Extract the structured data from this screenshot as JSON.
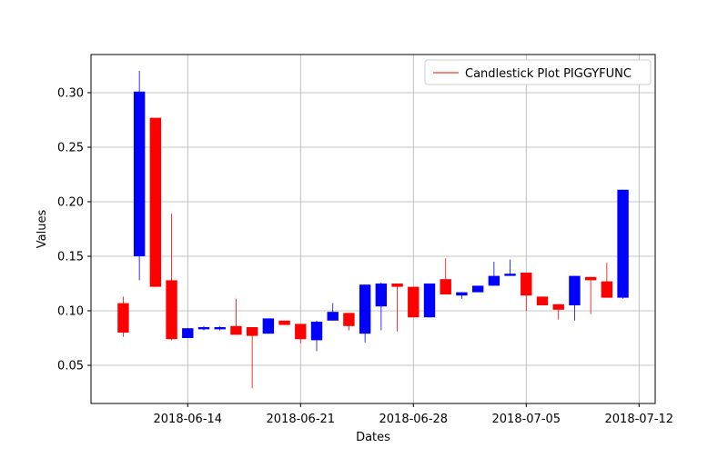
{
  "chart_data": {
    "type": "candlestick",
    "title": "",
    "xlabel": "Dates",
    "ylabel": "Values",
    "legend": {
      "label": "Candlestick Plot PIGGYFUNC",
      "position": "top-right",
      "line_color": "#ff0000"
    },
    "grid": true,
    "colors": {
      "up": "#0000ff",
      "down": "#ff0000",
      "grid": "#b0b0b0",
      "axis": "#000000"
    },
    "x_range": [
      "2018-06-08",
      "2018-07-13"
    ],
    "ylim": [
      0.015,
      0.335
    ],
    "x_ticks": [
      "2018-06-14",
      "2018-06-21",
      "2018-06-28",
      "2018-07-05",
      "2018-07-12"
    ],
    "y_ticks": [
      0.05,
      0.1,
      0.15,
      0.2,
      0.25,
      0.3
    ],
    "y_tick_labels": [
      "0.05",
      "0.10",
      "0.15",
      "0.20",
      "0.25",
      "0.30"
    ],
    "candles": [
      {
        "date": "2018-06-10",
        "open": 0.107,
        "close": 0.08,
        "high": 0.113,
        "low": 0.076
      },
      {
        "date": "2018-06-11",
        "open": 0.15,
        "close": 0.301,
        "high": 0.32,
        "low": 0.128
      },
      {
        "date": "2018-06-12",
        "open": 0.277,
        "close": 0.122,
        "high": 0.277,
        "low": 0.122
      },
      {
        "date": "2018-06-13",
        "open": 0.128,
        "close": 0.074,
        "high": 0.189,
        "low": 0.073
      },
      {
        "date": "2018-06-14",
        "open": 0.075,
        "close": 0.084,
        "high": 0.084,
        "low": 0.075
      },
      {
        "date": "2018-06-15",
        "open": 0.083,
        "close": 0.085,
        "high": 0.086,
        "low": 0.082
      },
      {
        "date": "2018-06-16",
        "open": 0.083,
        "close": 0.085,
        "high": 0.086,
        "low": 0.082
      },
      {
        "date": "2018-06-17",
        "open": 0.086,
        "close": 0.078,
        "high": 0.111,
        "low": 0.078
      },
      {
        "date": "2018-06-18",
        "open": 0.085,
        "close": 0.077,
        "high": 0.085,
        "low": 0.029
      },
      {
        "date": "2018-06-19",
        "open": 0.079,
        "close": 0.093,
        "high": 0.093,
        "low": 0.079
      },
      {
        "date": "2018-06-20",
        "open": 0.091,
        "close": 0.087,
        "high": 0.091,
        "low": 0.087
      },
      {
        "date": "2018-06-21",
        "open": 0.088,
        "close": 0.074,
        "high": 0.088,
        "low": 0.07
      },
      {
        "date": "2018-06-22",
        "open": 0.073,
        "close": 0.09,
        "high": 0.091,
        "low": 0.063
      },
      {
        "date": "2018-06-23",
        "open": 0.091,
        "close": 0.099,
        "high": 0.107,
        "low": 0.091
      },
      {
        "date": "2018-06-24",
        "open": 0.098,
        "close": 0.086,
        "high": 0.098,
        "low": 0.082
      },
      {
        "date": "2018-06-25",
        "open": 0.079,
        "close": 0.124,
        "high": 0.124,
        "low": 0.071
      },
      {
        "date": "2018-06-26",
        "open": 0.104,
        "close": 0.125,
        "high": 0.126,
        "low": 0.082
      },
      {
        "date": "2018-06-27",
        "open": 0.125,
        "close": 0.122,
        "high": 0.125,
        "low": 0.081
      },
      {
        "date": "2018-06-28",
        "open": 0.122,
        "close": 0.094,
        "high": 0.122,
        "low": 0.094
      },
      {
        "date": "2018-06-29",
        "open": 0.094,
        "close": 0.125,
        "high": 0.125,
        "low": 0.094
      },
      {
        "date": "2018-06-30",
        "open": 0.129,
        "close": 0.115,
        "high": 0.148,
        "low": 0.115
      },
      {
        "date": "2018-07-01",
        "open": 0.114,
        "close": 0.117,
        "high": 0.117,
        "low": 0.111
      },
      {
        "date": "2018-07-02",
        "open": 0.117,
        "close": 0.123,
        "high": 0.123,
        "low": 0.117
      },
      {
        "date": "2018-07-03",
        "open": 0.123,
        "close": 0.132,
        "high": 0.145,
        "low": 0.123
      },
      {
        "date": "2018-07-04",
        "open": 0.132,
        "close": 0.134,
        "high": 0.147,
        "low": 0.132
      },
      {
        "date": "2018-07-05",
        "open": 0.135,
        "close": 0.114,
        "high": 0.135,
        "low": 0.1
      },
      {
        "date": "2018-07-06",
        "open": 0.113,
        "close": 0.105,
        "high": 0.113,
        "low": 0.105
      },
      {
        "date": "2018-07-07",
        "open": 0.106,
        "close": 0.101,
        "high": 0.106,
        "low": 0.092
      },
      {
        "date": "2018-07-08",
        "open": 0.105,
        "close": 0.132,
        "high": 0.132,
        "low": 0.091
      },
      {
        "date": "2018-07-09",
        "open": 0.131,
        "close": 0.128,
        "high": 0.131,
        "low": 0.097
      },
      {
        "date": "2018-07-10",
        "open": 0.127,
        "close": 0.112,
        "high": 0.144,
        "low": 0.112
      },
      {
        "date": "2018-07-11",
        "open": 0.112,
        "close": 0.211,
        "high": 0.211,
        "low": 0.111
      }
    ]
  }
}
